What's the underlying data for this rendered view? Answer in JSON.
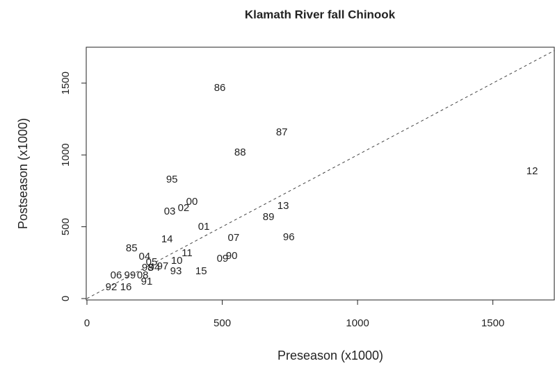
{
  "chart_data": {
    "type": "scatter",
    "title": "Klamath River fall Chinook",
    "x_label": "Preseason (x1000)",
    "y_label": "Postseason (x1000)",
    "point_labels": [
      "86",
      "87",
      "88",
      "12",
      "95",
      "00",
      "02",
      "03",
      "13",
      "89",
      "01",
      "07",
      "96",
      "14",
      "85",
      "11",
      "04",
      "05",
      "10",
      "09",
      "90",
      "97",
      "98",
      "94",
      "93",
      "15",
      "06",
      "99",
      "08",
      "92",
      "16",
      "91"
    ],
    "x": [
      491,
      720,
      566,
      1645,
      314,
      388,
      357,
      306,
      725,
      671,
      432,
      542,
      746,
      296,
      165,
      370,
      213,
      239,
      332,
      501,
      535,
      280,
      224,
      249,
      329,
      422,
      108,
      159,
      206,
      90,
      144,
      221
    ],
    "y": [
      1464,
      1155,
      1014,
      884,
      826,
      671,
      628,
      604,
      643,
      565,
      498,
      420,
      425,
      411,
      348,
      314,
      290,
      251,
      261,
      275,
      295,
      222,
      213,
      213,
      188,
      188,
      159,
      159,
      159,
      77,
      77,
      116
    ],
    "xlim": [
      0,
      1727
    ],
    "ylim": [
      0,
      1750
    ],
    "xticks": [
      0,
      500,
      1000,
      1500
    ],
    "yticks": [
      0,
      500,
      1000,
      1500
    ],
    "diagonal_line": true,
    "color": "#222222"
  }
}
